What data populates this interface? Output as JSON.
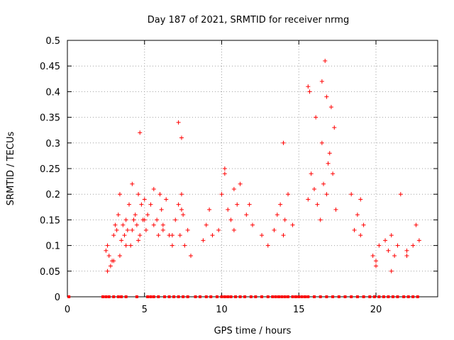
{
  "chart_data": {
    "type": "scatter",
    "title": "Day 187 of 2021, SRMTID for receiver nrmg",
    "xlabel": "GPS time / hours",
    "ylabel": "SRMTID / TECUs",
    "xlim": [
      0,
      24
    ],
    "ylim": [
      0,
      0.5
    ],
    "xticks": [
      0,
      5,
      10,
      15,
      20
    ],
    "xtick_labels": [
      "0",
      "5",
      "10",
      "15",
      "20"
    ],
    "yticks": [
      0,
      0.05,
      0.1,
      0.15,
      0.2,
      0.25,
      0.3,
      0.35,
      0.4,
      0.45,
      0.5
    ],
    "ytick_labels": [
      "0",
      "0.05",
      "0.1",
      "0.15",
      "0.2",
      "0.25",
      "0.3",
      "0.35",
      "0.4",
      "0.45",
      "0.5"
    ],
    "grid": true,
    "marker": "+",
    "color": "#ff0000",
    "series": [
      {
        "name": "SRMTID",
        "x": [
          2.5,
          2.6,
          2.7,
          2.8,
          2.9,
          3.0,
          3.1,
          3.2,
          3.3,
          3.4,
          3.5,
          3.6,
          3.7,
          3.8,
          3.9,
          4.0,
          4.1,
          4.2,
          4.3,
          4.4,
          4.5,
          4.6,
          4.7,
          4.8,
          4.9,
          5.0,
          5.1,
          5.2,
          5.4,
          5.6,
          5.8,
          5.9,
          6.0,
          6.1,
          6.2,
          6.4,
          6.6,
          6.8,
          7.0,
          7.2,
          7.3,
          7.4,
          7.5,
          7.6,
          7.8,
          8.0,
          8.8,
          9.0,
          9.2,
          9.4,
          9.8,
          10.0,
          10.2,
          10.4,
          10.6,
          10.8,
          11.0,
          11.2,
          11.6,
          11.8,
          12.0,
          12.6,
          13.0,
          13.4,
          13.6,
          13.8,
          14.0,
          14.1,
          14.3,
          14.6,
          15.6,
          15.8,
          16.0,
          16.2,
          16.4,
          16.6,
          16.8,
          17.0,
          17.2,
          17.4,
          18.4,
          18.6,
          18.8,
          19.0,
          19.2,
          19.8,
          20.0,
          20.2,
          20.6,
          20.8,
          21.0,
          21.2,
          21.4,
          21.6,
          22.0,
          22.4,
          22.6,
          22.8,
          2.6,
          3.0,
          3.4,
          3.8,
          4.2,
          4.6,
          5.0,
          5.6,
          6.2,
          6.8,
          7.4,
          10.2,
          10.8,
          14.0,
          15.7,
          16.1,
          16.5,
          16.9,
          17.3,
          19.0,
          20.0,
          21.0,
          22.0,
          4.7,
          16.5,
          16.7,
          16.8,
          17.1,
          15.6,
          7.2,
          7.4
        ],
        "y": [
          0.09,
          0.1,
          0.08,
          0.06,
          0.07,
          0.12,
          0.14,
          0.13,
          0.16,
          0.2,
          0.11,
          0.14,
          0.12,
          0.15,
          0.13,
          0.18,
          0.1,
          0.22,
          0.15,
          0.16,
          0.14,
          0.2,
          0.12,
          0.18,
          0.15,
          0.19,
          0.13,
          0.16,
          0.18,
          0.21,
          0.15,
          0.12,
          0.2,
          0.17,
          0.14,
          0.19,
          0.12,
          0.1,
          0.15,
          0.18,
          0.12,
          0.2,
          0.16,
          0.1,
          0.13,
          0.08,
          0.11,
          0.14,
          0.17,
          0.12,
          0.13,
          0.2,
          0.24,
          0.17,
          0.15,
          0.13,
          0.18,
          0.22,
          0.16,
          0.18,
          0.14,
          0.12,
          0.1,
          0.13,
          0.16,
          0.18,
          0.12,
          0.15,
          0.2,
          0.14,
          0.19,
          0.24,
          0.21,
          0.18,
          0.15,
          0.22,
          0.2,
          0.28,
          0.24,
          0.17,
          0.2,
          0.13,
          0.16,
          0.12,
          0.14,
          0.08,
          0.06,
          0.1,
          0.11,
          0.09,
          0.12,
          0.08,
          0.1,
          0.2,
          0.09,
          0.1,
          0.14,
          0.11,
          0.05,
          0.07,
          0.08,
          0.1,
          0.13,
          0.11,
          0.15,
          0.14,
          0.13,
          0.12,
          0.17,
          0.25,
          0.21,
          0.3,
          0.4,
          0.35,
          0.3,
          0.26,
          0.33,
          0.19,
          0.07,
          0.05,
          0.08,
          0.32,
          0.42,
          0.46,
          0.39,
          0.37,
          0.41,
          0.34,
          0.31
        ],
        "zero_x": [
          0.1,
          2.3,
          2.5,
          2.7,
          3.0,
          3.3,
          3.5,
          3.8,
          4.5,
          5.2,
          5.4,
          5.6,
          5.9,
          6.3,
          6.6,
          6.9,
          7.2,
          7.5,
          7.8,
          8.3,
          8.6,
          9.0,
          9.3,
          9.7,
          10.0,
          10.2,
          10.4,
          10.6,
          10.9,
          11.2,
          11.5,
          11.9,
          12.2,
          12.6,
          13.0,
          13.3,
          13.5,
          13.7,
          13.9,
          14.1,
          14.3,
          14.6,
          14.8,
          15.0,
          15.2,
          15.4,
          15.6,
          16.0,
          16.4,
          16.8,
          17.2,
          17.6,
          18.0,
          18.4,
          18.8,
          19.2,
          19.6,
          19.9,
          20.2,
          20.5,
          20.8,
          21.1,
          21.4,
          21.8,
          22.1,
          22.4,
          22.7
        ],
        "zero_y": 0
      }
    ]
  }
}
